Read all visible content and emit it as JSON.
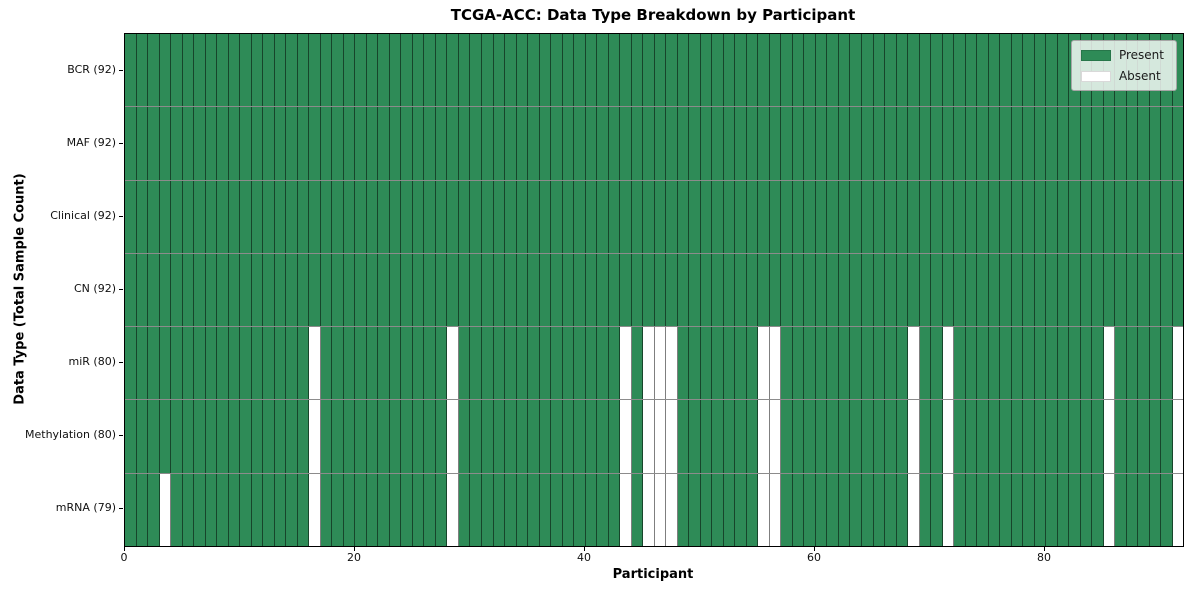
{
  "chart_data": {
    "type": "heatmap",
    "title": "TCGA-ACC: Data Type Breakdown by Participant",
    "xlabel": "Participant",
    "ylabel": "Data Type (Total Sample Count)",
    "n_participants": 92,
    "x_ticks": [
      0,
      20,
      40,
      60,
      80
    ],
    "x_range": [
      0,
      92
    ],
    "grid": true,
    "legend_position": "upper right",
    "rows": [
      {
        "label": "BCR (92)",
        "present_count": 92,
        "absent_participants": []
      },
      {
        "label": "MAF (92)",
        "present_count": 92,
        "absent_participants": []
      },
      {
        "label": "Clinical (92)",
        "present_count": 92,
        "absent_participants": []
      },
      {
        "label": "CN (92)",
        "present_count": 92,
        "absent_participants": []
      },
      {
        "label": "miR (80)",
        "present_count": 80,
        "absent_participants": [
          16,
          28,
          43,
          45,
          46,
          47,
          55,
          56,
          68,
          71,
          85,
          91
        ]
      },
      {
        "label": "Methylation (80)",
        "present_count": 80,
        "absent_participants": [
          16,
          28,
          43,
          45,
          46,
          47,
          55,
          56,
          68,
          71,
          85,
          91
        ]
      },
      {
        "label": "mRNA (79)",
        "present_count": 79,
        "absent_participants": [
          3,
          16,
          28,
          43,
          45,
          46,
          47,
          55,
          56,
          68,
          71,
          85,
          91
        ]
      }
    ],
    "legend": [
      {
        "label": "Present",
        "color": "#2e8b57"
      },
      {
        "label": "Absent",
        "color": "#ffffff"
      }
    ],
    "colors": {
      "present": "#2e8b57",
      "absent": "#ffffff",
      "frame": "#000000"
    }
  }
}
